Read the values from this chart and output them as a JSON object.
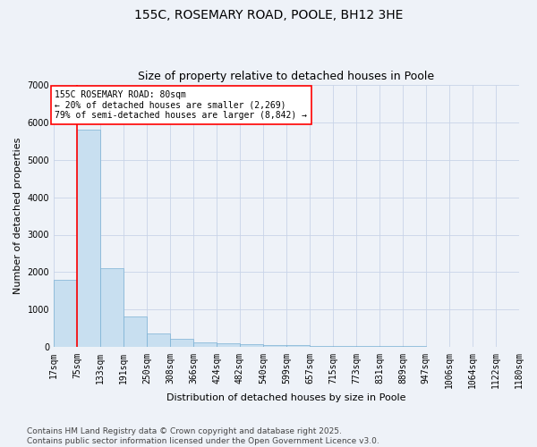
{
  "title_line1": "155C, ROSEMARY ROAD, POOLE, BH12 3HE",
  "title_line2": "Size of property relative to detached houses in Poole",
  "xlabel": "Distribution of detached houses by size in Poole",
  "ylabel": "Number of detached properties",
  "bar_color": "#c8dff0",
  "bar_edge_color": "#7ab0d4",
  "background_color": "#eef2f8",
  "bins": [
    17,
    75,
    133,
    191,
    250,
    308,
    366,
    424,
    482,
    540,
    599,
    657,
    715,
    773,
    831,
    889,
    947,
    1006,
    1064,
    1122,
    1180
  ],
  "bin_labels": [
    "17sqm",
    "75sqm",
    "133sqm",
    "191sqm",
    "250sqm",
    "308sqm",
    "366sqm",
    "424sqm",
    "482sqm",
    "540sqm",
    "599sqm",
    "657sqm",
    "715sqm",
    "773sqm",
    "831sqm",
    "889sqm",
    "947sqm",
    "1006sqm",
    "1064sqm",
    "1122sqm",
    "1180sqm"
  ],
  "values": [
    1800,
    5800,
    2100,
    820,
    370,
    230,
    120,
    95,
    80,
    65,
    55,
    45,
    40,
    35,
    30,
    25,
    22,
    18,
    15,
    10
  ],
  "vline_x": 75,
  "vline_color": "red",
  "annotation_text": "155C ROSEMARY ROAD: 80sqm\n← 20% of detached houses are smaller (2,269)\n79% of semi-detached houses are larger (8,842) →",
  "annotation_box_color": "white",
  "annotation_border_color": "red",
  "ylim": [
    0,
    7000
  ],
  "yticks": [
    0,
    1000,
    2000,
    3000,
    4000,
    5000,
    6000,
    7000
  ],
  "footer1": "Contains HM Land Registry data © Crown copyright and database right 2025.",
  "footer2": "Contains public sector information licensed under the Open Government Licence v3.0.",
  "grid_color": "#c8d4e8",
  "title_fontsize": 10,
  "subtitle_fontsize": 9,
  "label_fontsize": 8,
  "tick_fontsize": 7,
  "annotation_fontsize": 7,
  "footer_fontsize": 6.5
}
